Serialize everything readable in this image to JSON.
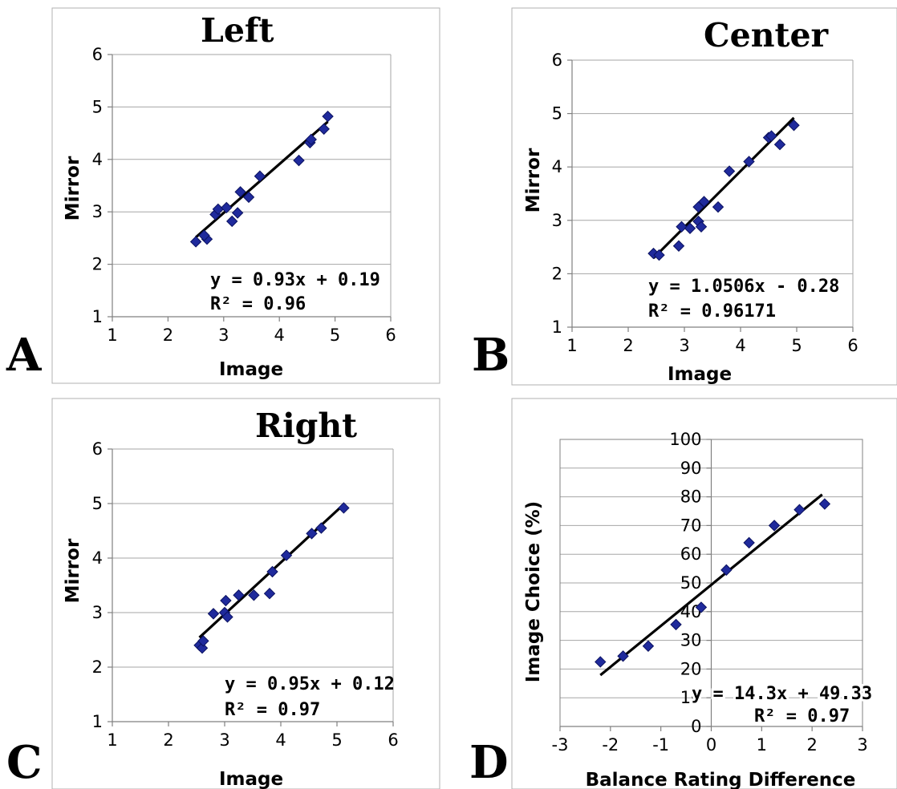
{
  "figure": {
    "panel_letters": [
      "A",
      "B",
      "C",
      "D"
    ]
  },
  "chart_data": [
    {
      "type": "scatter",
      "panel": "A",
      "title": "Left",
      "xlabel": "Image",
      "ylabel": "Mirror",
      "xlim": [
        1,
        6
      ],
      "ylim": [
        1,
        6
      ],
      "xticks": [
        1,
        2,
        3,
        4,
        5,
        6
      ],
      "yticks": [
        1,
        2,
        3,
        4,
        5,
        6
      ],
      "grid": "horizontal",
      "x": [
        2.5,
        2.7,
        2.65,
        2.85,
        2.9,
        3.05,
        3.15,
        3.25,
        3.3,
        3.45,
        3.65,
        4.35,
        4.55,
        4.57,
        4.8,
        4.87
      ],
      "y": [
        2.43,
        2.48,
        2.55,
        2.95,
        3.05,
        3.08,
        2.82,
        2.98,
        3.38,
        3.28,
        3.68,
        3.98,
        4.32,
        4.38,
        4.58,
        4.82
      ],
      "trendline": {
        "slope": 0.93,
        "intercept": 0.19,
        "x_range": [
          2.5,
          4.87
        ]
      },
      "equation": "y = 0.93x + 0.19",
      "r2": "R² = 0.96"
    },
    {
      "type": "scatter",
      "panel": "B",
      "title": "Center",
      "xlabel": "Image",
      "ylabel": "Mirror",
      "xlim": [
        1,
        6
      ],
      "ylim": [
        1,
        6
      ],
      "xticks": [
        1,
        2,
        3,
        4,
        5,
        6
      ],
      "yticks": [
        1,
        2,
        3,
        4,
        5,
        6
      ],
      "grid": "horizontal",
      "x": [
        2.45,
        2.55,
        2.9,
        2.95,
        3.1,
        3.25,
        3.25,
        3.3,
        3.35,
        3.6,
        3.8,
        4.15,
        4.5,
        4.55,
        4.7,
        4.95
      ],
      "y": [
        2.38,
        2.35,
        2.52,
        2.88,
        2.85,
        2.98,
        3.25,
        2.88,
        3.35,
        3.25,
        3.92,
        4.1,
        4.55,
        4.58,
        4.42,
        4.78
      ],
      "trendline": {
        "slope": 1.0506,
        "intercept": -0.28,
        "x_range": [
          2.45,
          4.95
        ]
      },
      "equation": "y = 1.0506x - 0.28",
      "r2": "R² = 0.96171"
    },
    {
      "type": "scatter",
      "panel": "C",
      "title": "Right",
      "xlabel": "Image",
      "ylabel": "Mirror",
      "xlim": [
        1,
        6
      ],
      "ylim": [
        1,
        6
      ],
      "xticks": [
        1,
        2,
        3,
        4,
        5,
        6
      ],
      "yticks": [
        1,
        2,
        3,
        4,
        5,
        6
      ],
      "grid": "horizontal",
      "x": [
        2.55,
        2.6,
        2.62,
        2.8,
        3.0,
        3.02,
        3.05,
        3.25,
        3.52,
        3.8,
        3.85,
        4.1,
        4.55,
        4.72,
        5.12
      ],
      "y": [
        2.4,
        2.35,
        2.48,
        2.98,
        3.0,
        3.22,
        2.92,
        3.32,
        3.32,
        3.35,
        3.75,
        4.05,
        4.45,
        4.55,
        4.92
      ],
      "trendline": {
        "slope": 0.95,
        "intercept": 0.12,
        "x_range": [
          2.55,
          5.12
        ]
      },
      "equation": "y = 0.95x + 0.12",
      "r2": "R² = 0.97"
    },
    {
      "type": "scatter",
      "panel": "D",
      "title": "",
      "xlabel": "Balance Rating Difference",
      "ylabel": "Image Choice (%)",
      "xlim": [
        -3,
        3
      ],
      "ylim": [
        0,
        100
      ],
      "xticks": [
        -3,
        -2,
        -1,
        0,
        1,
        2,
        3
      ],
      "yticks": [
        0,
        10,
        20,
        30,
        40,
        50,
        60,
        70,
        80,
        90,
        100
      ],
      "grid": "horizontal",
      "x": [
        -2.2,
        -1.75,
        -1.25,
        -0.7,
        -0.2,
        0.3,
        0.75,
        1.25,
        1.75,
        2.25
      ],
      "y": [
        22.5,
        24.5,
        28,
        35.5,
        41.5,
        54.5,
        64,
        70,
        75.5,
        77.5
      ],
      "trendline": {
        "slope": 14.3,
        "intercept": 49.33,
        "x_range": [
          -2.2,
          2.2
        ]
      },
      "equation": "y = 14.3x + 49.33",
      "r2": "R² = 0.97"
    }
  ]
}
